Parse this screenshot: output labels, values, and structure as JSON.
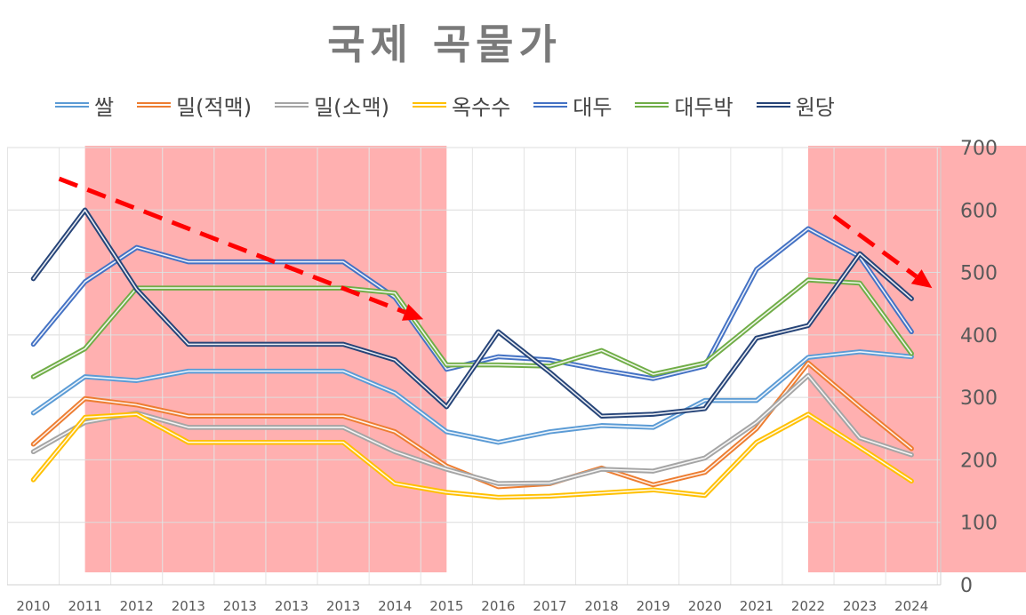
{
  "chart_data": {
    "type": "line",
    "title": "국제 곡물가",
    "xlabel": "",
    "ylabel": "",
    "categories": [
      "2010",
      "2011",
      "2012",
      "2013",
      "2013",
      "2013",
      "2013",
      "2014",
      "2015",
      "2016",
      "2017",
      "2018",
      "2019",
      "2020",
      "2021",
      "2022",
      "2023",
      "2024"
    ],
    "ylim": [
      0,
      700
    ],
    "yticks": [
      "0",
      "100",
      "200",
      "300",
      "400",
      "500",
      "600",
      "700"
    ],
    "grid": true,
    "legend_position": "top",
    "series": [
      {
        "name": "쌀",
        "color": "#5b9bd5",
        "values": [
          275,
          333,
          327,
          342,
          342,
          342,
          342,
          307,
          245,
          228,
          245,
          255,
          252,
          295,
          295,
          364,
          373,
          365
        ]
      },
      {
        "name": "밀(적맥)",
        "color": "#ed7d31",
        "values": [
          225,
          298,
          288,
          270,
          270,
          270,
          270,
          245,
          190,
          157,
          162,
          187,
          160,
          180,
          250,
          355,
          285,
          218
        ]
      },
      {
        "name": "밀(소맥)",
        "color": "#a5a5a5",
        "values": [
          213,
          260,
          275,
          252,
          252,
          252,
          252,
          213,
          185,
          162,
          163,
          185,
          182,
          203,
          260,
          335,
          235,
          208
        ]
      },
      {
        "name": "옥수수",
        "color": "#ffc000",
        "values": [
          168,
          268,
          273,
          228,
          228,
          228,
          228,
          162,
          148,
          140,
          142,
          147,
          152,
          143,
          228,
          273,
          220,
          166
        ]
      },
      {
        "name": "대두",
        "color": "#4472c4",
        "values": [
          385,
          485,
          540,
          517,
          517,
          517,
          517,
          460,
          345,
          365,
          360,
          344,
          330,
          350,
          505,
          570,
          525,
          405
        ]
      },
      {
        "name": "대두박",
        "color": "#70ad47",
        "values": [
          333,
          378,
          475,
          475,
          475,
          475,
          475,
          467,
          352,
          352,
          350,
          375,
          337,
          355,
          422,
          488,
          483,
          370
        ]
      },
      {
        "name": "원당",
        "color": "#264478",
        "values": [
          490,
          600,
          473,
          385,
          385,
          385,
          385,
          360,
          285,
          405,
          340,
          270,
          273,
          282,
          395,
          415,
          530,
          458
        ]
      }
    ],
    "highlight_regions": [
      {
        "from": "2011",
        "to": "2015",
        "color": "#ff7f7f"
      },
      {
        "from": "2022",
        "to": "right-edge",
        "color": "#ff7f7f"
      }
    ],
    "trend_arrows": [
      {
        "from": [
          0.5,
          650
        ],
        "to": [
          7.55,
          425
        ],
        "color": "#ff0000",
        "style": "dashed"
      },
      {
        "from": [
          15.5,
          590
        ],
        "to": [
          17.4,
          475
        ],
        "color": "#ff0000",
        "style": "dashed"
      }
    ]
  }
}
